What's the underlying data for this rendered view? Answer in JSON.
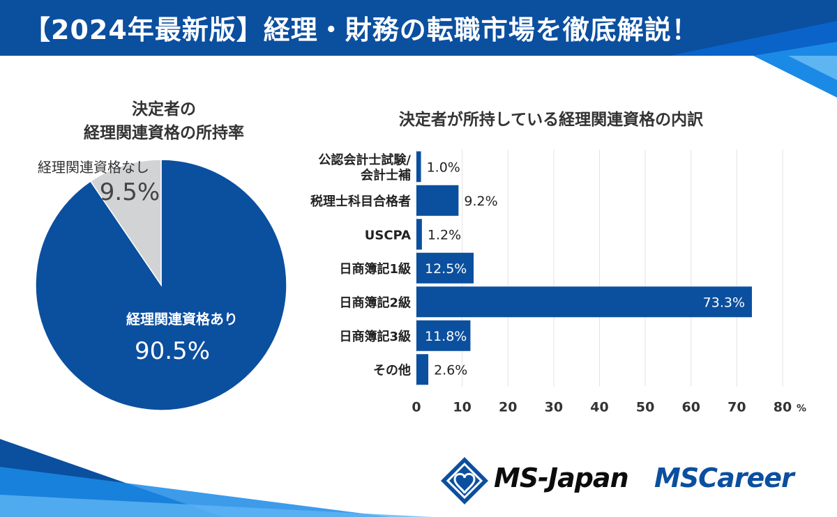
{
  "header": {
    "title": "【2024年最新版】経理・財務の転職市場を徹底解説！"
  },
  "pie_title_lines": [
    "決定者の",
    "経理関連資格の所持率"
  ],
  "bar_title": "決定者が所持している経理関連資格の内訳",
  "logos": {
    "ms_japan": "MS-Japan",
    "ms_career": "MSCareer"
  },
  "colors": {
    "brand": "#0b4f9f",
    "bar": "#0b4f9f",
    "pie_other": "#d2d3d5",
    "grid": "#e3e3e3"
  },
  "chart_data": [
    {
      "type": "pie",
      "title": "決定者の経理関連資格の所持率",
      "slices": [
        {
          "label": "経理関連資格あり",
          "value": 90.5,
          "display": "90.5%"
        },
        {
          "label": "経理関連資格なし",
          "value": 9.5,
          "display": "9.5%"
        }
      ]
    },
    {
      "type": "bar",
      "orientation": "horizontal",
      "title": "決定者が所持している経理関連資格の内訳",
      "categories": [
        [
          "公認会計士試験/",
          "会計士補"
        ],
        [
          "税理士科目合格者"
        ],
        [
          "USCPA"
        ],
        [
          "日商簿記1級"
        ],
        [
          "日商簿記2級"
        ],
        [
          "日商簿記3級"
        ],
        [
          "その他"
        ]
      ],
      "values": [
        1.0,
        9.2,
        1.2,
        12.5,
        73.3,
        11.8,
        2.6
      ],
      "labels": [
        "1.0%",
        "9.2%",
        "1.2%",
        "12.5%",
        "73.3%",
        "11.8%",
        "2.6%"
      ],
      "xlim": [
        0,
        80
      ],
      "xticks": [
        "0",
        "10",
        "20",
        "30",
        "40",
        "50",
        "60",
        "70",
        "80"
      ],
      "xunit": "%",
      "grid": true
    }
  ]
}
